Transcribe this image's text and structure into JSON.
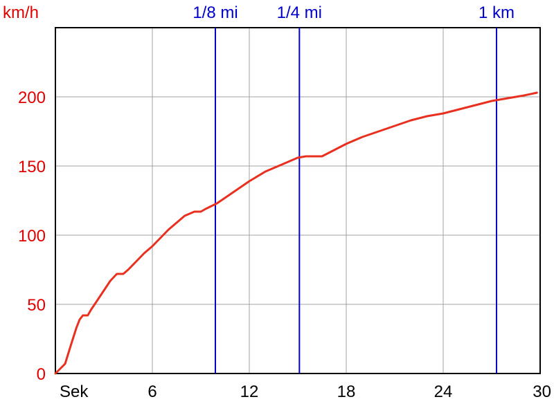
{
  "chart_data": {
    "type": "line",
    "ylabel": "km/h",
    "xlabel": "Sek",
    "xlim": [
      0,
      30
    ],
    "ylim": [
      0,
      250
    ],
    "grid": true,
    "x_ticks": [
      {
        "value": 0,
        "label": "Sek"
      },
      {
        "value": 6,
        "label": "6"
      },
      {
        "value": 12,
        "label": "12"
      },
      {
        "value": 18,
        "label": "18"
      },
      {
        "value": 24,
        "label": "24"
      },
      {
        "value": 30,
        "label": "30"
      }
    ],
    "y_ticks": [
      {
        "value": 0,
        "label": "0"
      },
      {
        "value": 50,
        "label": "50"
      },
      {
        "value": 100,
        "label": "100"
      },
      {
        "value": 150,
        "label": "150"
      },
      {
        "value": 200,
        "label": "200"
      }
    ],
    "markers": [
      {
        "label": "1/8 mi",
        "x": 9.9
      },
      {
        "label": "1/4 mi",
        "x": 15.1
      },
      {
        "label": "1 km",
        "x": 27.3
      }
    ],
    "series": [
      {
        "color": "#e83020",
        "x": [
          0,
          0.6,
          1.0,
          1.3,
          1.5,
          1.7,
          1.9,
          2.0,
          2.2,
          2.6,
          3.0,
          3.4,
          3.8,
          4.0,
          4.2,
          4.5,
          5.0,
          5.5,
          6.0,
          7.0,
          8.0,
          8.6,
          9.0,
          9.3,
          10.0,
          11.0,
          12.0,
          13.0,
          14.0,
          14.6,
          15.0,
          15.5,
          16.0,
          16.5,
          17.0,
          18.0,
          19.0,
          20.0,
          21.0,
          22.0,
          23.0,
          24.0,
          25.0,
          26.0,
          27.0,
          28.0,
          29.0,
          29.8
        ],
        "y": [
          0,
          7,
          22,
          33,
          39,
          42,
          42,
          42,
          46,
          53,
          60,
          67,
          72,
          72,
          72,
          75,
          81,
          87,
          92,
          104,
          114,
          117,
          117,
          119,
          123,
          131,
          139,
          146,
          151,
          154,
          156,
          157,
          157,
          157,
          160,
          166,
          171,
          175,
          179,
          183,
          186,
          188,
          191,
          194,
          197,
          199,
          201,
          203
        ]
      }
    ]
  }
}
